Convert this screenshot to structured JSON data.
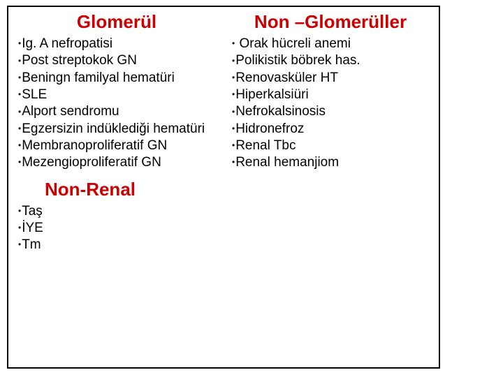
{
  "colors": {
    "heading": "#cc0000",
    "text": "#000000",
    "border": "#000000",
    "background": "#ffffff"
  },
  "typography": {
    "heading_fontsize": 26,
    "item_fontsize": 19,
    "font_family": "Arial"
  },
  "col1": {
    "heading": "Glomerül",
    "items": [
      "Ig. A nefropatisi",
      "Post streptokok GN",
      "Beningn familyal hematüri",
      "SLE",
      "Alport sendromu",
      "Egzersizin indüklediği hematüri",
      "Membranoproliferatif GN",
      "Mezengioproliferatif GN"
    ]
  },
  "col2": {
    "heading": "Non –Glomerüller",
    "items": [
      " Orak hücreli anemi",
      "Polikistik böbrek has.",
      "Renovasküler HT",
      "Hiperkalsiüri",
      "Nefrokalsinosis",
      "Hidronefroz",
      "Renal Tbc",
      "Renal hemanjiom"
    ]
  },
  "col3": {
    "heading": "Non-Renal",
    "items": [
      "Taş",
      "İYE",
      "Tm"
    ]
  }
}
